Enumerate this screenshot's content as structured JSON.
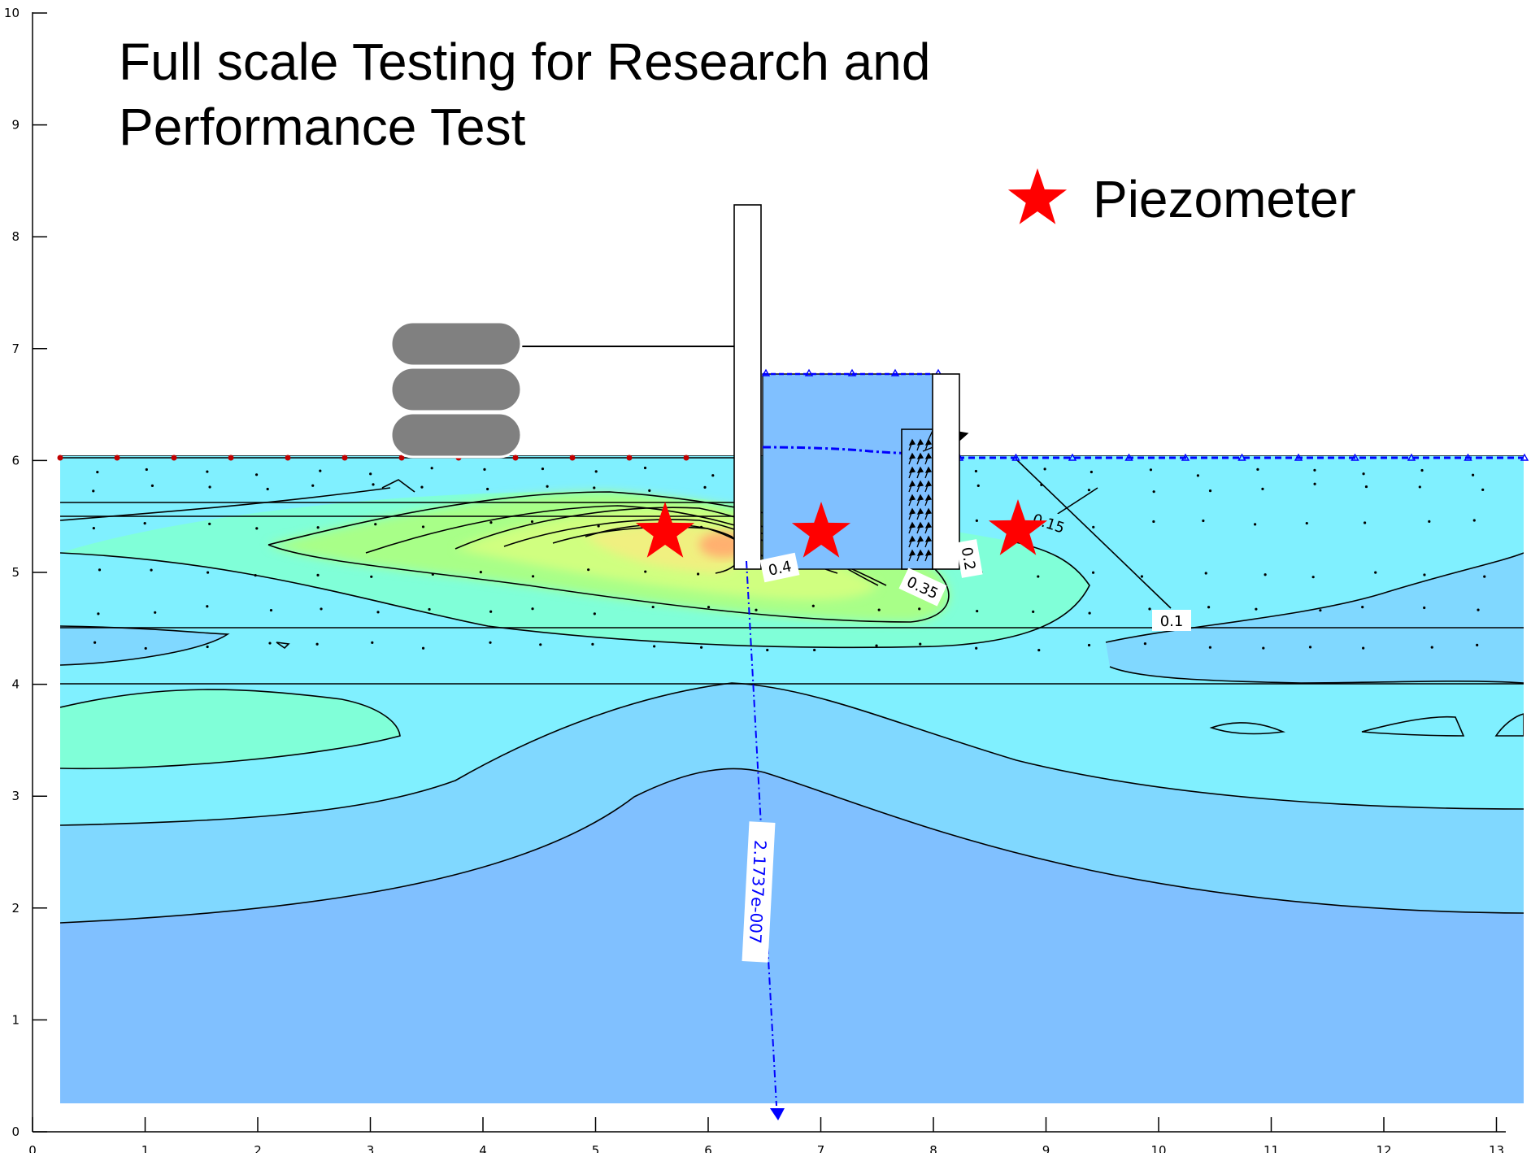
{
  "title_lines": [
    "Full scale Testing for Research and",
    "Performance Test"
  ],
  "legend": {
    "label": "Piezometer",
    "marker_icon": "red-star-icon",
    "marker_color": "#ff0000"
  },
  "x_ticks": [
    "0",
    "1",
    "2",
    "3",
    "4",
    "5",
    "6",
    "7",
    "8",
    "9",
    "10",
    "11",
    "12",
    "13"
  ],
  "y_ticks": [
    "0",
    "1",
    "2",
    "3",
    "4",
    "5",
    "6",
    "7",
    "8",
    "9",
    "10"
  ],
  "contour_labels": [
    "0.4",
    "0.35",
    "0.2",
    "0.15",
    "0.1"
  ],
  "flux_label": "2.1737e-007",
  "colors": {
    "deep_blue": "#80c0ff",
    "light_blue": "#80d8ff",
    "cyan": "#80f0ff",
    "aqua_green": "#80ffd8",
    "green": "#a0ff80",
    "yellow_green": "#d8ff80",
    "yellow": "#ffe880",
    "orange": "#ffb070",
    "star": "#ff0000",
    "flux_line": "#0000ff",
    "sandbag": "#808080"
  }
}
